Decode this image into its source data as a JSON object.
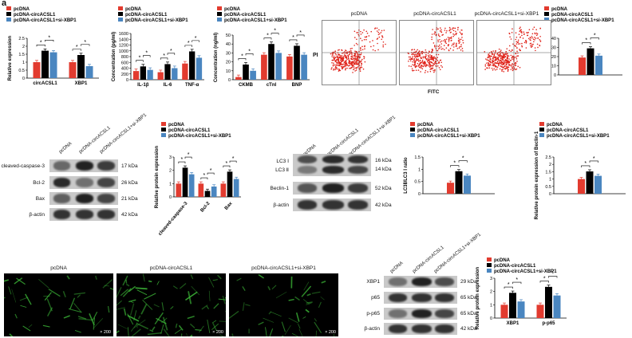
{
  "panel_letters": {
    "a": "a"
  },
  "colors": {
    "pcDNA": "#e23b2f",
    "circ": "#000000",
    "si": "#4a86c0"
  },
  "legend_labels": [
    "pcDNA",
    "pcDNA-circACSL1",
    "pcDNA-circACSL1+si-XBP1"
  ],
  "sig": "*",
  "flow": {
    "titles": [
      "pcDNA",
      "pcDNA-circACSL1",
      "pcDNA-circACSL1+si-XBP1"
    ],
    "y_label": "PI",
    "x_label": "FITC"
  },
  "blot1": {
    "lanes": [
      "pcDNA",
      "pcDNA-circACSL1",
      "pcDNA-circACSL1+si-XBP1"
    ],
    "rows": [
      {
        "label": "cleaved-caspase-3",
        "kda": "17 kDa"
      },
      {
        "label": "Bcl-2",
        "kda": "26 kDa"
      },
      {
        "label": "Bax",
        "kda": "21 kDa"
      },
      {
        "label": "β-actin",
        "kda": "42 kDa"
      }
    ]
  },
  "blot2": {
    "lanes": [
      "pcDNA",
      "pcDNA-circACSL1",
      "pcDNA-circACSL1+si-XBP1"
    ],
    "rows": [
      {
        "label": "LC3 Ⅰ",
        "kda": "16 kDa"
      },
      {
        "label": "LC3 Ⅱ",
        "kda": "14 kDa"
      },
      {
        "label": "Beclin-1",
        "kda": "52 kDa"
      },
      {
        "label": "β-actin",
        "kda": "42 kDa"
      }
    ]
  },
  "blot3": {
    "lanes": [
      "pcDNA",
      "pcDNA-circACSL1",
      "pcDNA-circACSL1+si-XBP1"
    ],
    "rows": [
      {
        "label": "XBP1",
        "kda": "29 kDa"
      },
      {
        "label": "p65",
        "kda": "65 kDa"
      },
      {
        "label": "p-p65",
        "kda": "65 kDa"
      },
      {
        "label": "β-actin",
        "kda": "42 kDa"
      }
    ]
  },
  "fluorescence": {
    "titles": [
      "pcDNA",
      "pcDNA-circACSL1",
      "pcDNA-circACSL1+si-XBP1"
    ],
    "magnification": "× 200"
  },
  "chart_data": [
    {
      "id": "c1",
      "type": "bar",
      "ylabel": "Relative expression",
      "categories": [
        "circACSL1",
        "XBP1"
      ],
      "ylim": [
        0,
        2.5
      ],
      "yticks": [
        0,
        0.5,
        1.0,
        1.5,
        2.0,
        2.5
      ],
      "series": [
        {
          "name": "pcDNA",
          "values": [
            1.0,
            1.0
          ]
        },
        {
          "name": "pcDNA-circACSL1",
          "values": [
            1.72,
            1.45
          ]
        },
        {
          "name": "pcDNA-circACSL1+si-XBP1",
          "values": [
            1.62,
            0.75
          ]
        }
      ]
    },
    {
      "id": "c2",
      "type": "bar",
      "ylabel": "Concentration (pg/ml)",
      "categories": [
        "IL-1β",
        "IL-6",
        "TNF-α"
      ],
      "ylim": [
        0,
        1600
      ],
      "yticks": [
        0,
        200,
        400,
        600,
        800,
        1000,
        1200,
        1400,
        1600
      ],
      "series": [
        {
          "name": "pcDNA",
          "values": [
            300,
            260,
            560
          ]
        },
        {
          "name": "pcDNA-circACSL1",
          "values": [
            460,
            540,
            980
          ]
        },
        {
          "name": "pcDNA-circACSL1+si-XBP1",
          "values": [
            340,
            400,
            760
          ]
        }
      ]
    },
    {
      "id": "c3",
      "type": "bar",
      "ylabel": "Concentration (ng/ml)",
      "categories": [
        "CKMB",
        "cTnI",
        "BNP"
      ],
      "ylim": [
        0,
        50
      ],
      "yticks": [
        0,
        10,
        20,
        30,
        40,
        50
      ],
      "series": [
        {
          "name": "pcDNA",
          "values": [
            3,
            28,
            26
          ]
        },
        {
          "name": "pcDNA-circACSL1",
          "values": [
            17,
            40,
            38
          ]
        },
        {
          "name": "pcDNA-circACSL1+si-XBP1",
          "values": [
            10,
            30,
            28
          ]
        }
      ]
    },
    {
      "id": "c4",
      "type": "bar",
      "ylabel": "Apoptosis rates (%)",
      "categories": [
        ""
      ],
      "ylim": [
        0,
        40
      ],
      "yticks": [
        0,
        10,
        20,
        30,
        40
      ],
      "series": [
        {
          "name": "pcDNA",
          "values": [
            19
          ]
        },
        {
          "name": "pcDNA-circACSL1",
          "values": [
            29
          ]
        },
        {
          "name": "pcDNA-circACSL1+si-XBP1",
          "values": [
            21
          ]
        }
      ]
    },
    {
      "id": "c5",
      "type": "bar",
      "ylabel": "Relative protein expression",
      "categories": [
        "cleaved-caspase-3",
        "Bcl-2",
        "Bax"
      ],
      "ylim": [
        0,
        3
      ],
      "yticks": [
        0,
        1,
        2,
        3
      ],
      "series": [
        {
          "name": "pcDNA",
          "values": [
            1.0,
            1.0,
            1.0
          ]
        },
        {
          "name": "pcDNA-circACSL1",
          "values": [
            2.2,
            0.45,
            1.9
          ]
        },
        {
          "name": "pcDNA-circACSL1+si-XBP1",
          "values": [
            1.7,
            0.78,
            1.35
          ]
        }
      ]
    },
    {
      "id": "c6",
      "type": "bar",
      "ylabel": "LC3Ⅱ/LC3 Ⅰ ratio",
      "categories": [
        ""
      ],
      "ylim": [
        0,
        1.5
      ],
      "yticks": [
        0,
        0.5,
        1.0,
        1.5
      ],
      "series": [
        {
          "name": "pcDNA",
          "values": [
            0.45
          ]
        },
        {
          "name": "pcDNA-circACSL1",
          "values": [
            0.92
          ]
        },
        {
          "name": "pcDNA-circACSL1+si-XBP1",
          "values": [
            0.74
          ]
        }
      ]
    },
    {
      "id": "c7",
      "type": "bar",
      "ylabel": "Relative protein expression of Beclin-1",
      "categories": [
        ""
      ],
      "ylim": [
        0,
        2.5
      ],
      "yticks": [
        0,
        0.5,
        1.0,
        1.5,
        2.0,
        2.5
      ],
      "series": [
        {
          "name": "pcDNA",
          "values": [
            1.0
          ]
        },
        {
          "name": "pcDNA-circACSL1",
          "values": [
            1.52
          ]
        },
        {
          "name": "pcDNA-circACSL1+si-XBP1",
          "values": [
            1.22
          ]
        }
      ]
    },
    {
      "id": "c8",
      "type": "bar",
      "ylabel": "Relative protein expression",
      "categories": [
        "XBP1",
        "p-p65"
      ],
      "ylim": [
        0,
        3
      ],
      "yticks": [
        0,
        1,
        2,
        3
      ],
      "series": [
        {
          "name": "pcDNA",
          "values": [
            1.0,
            1.0
          ]
        },
        {
          "name": "pcDNA-circACSL1",
          "values": [
            1.9,
            2.35
          ]
        },
        {
          "name": "pcDNA-circACSL1+si-XBP1",
          "values": [
            1.25,
            1.7
          ]
        }
      ]
    }
  ]
}
